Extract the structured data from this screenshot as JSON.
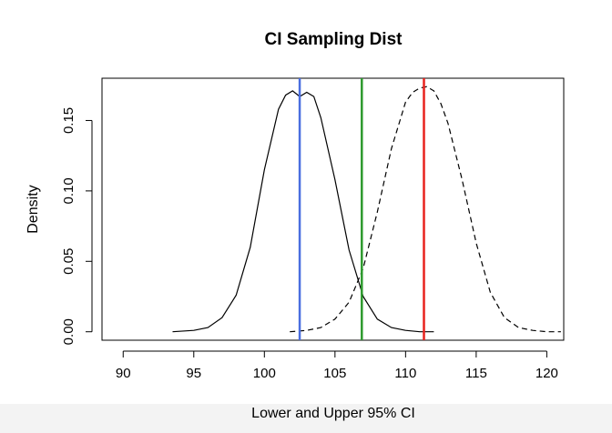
{
  "chart_data": {
    "type": "line",
    "title": "CI Sampling Dist",
    "xlabel": "Lower and Upper 95% CI",
    "ylabel": "Density",
    "xlim": [
      88.5,
      121.2
    ],
    "ylim": [
      -0.006,
      0.18
    ],
    "x_ticks": [
      90,
      95,
      100,
      105,
      110,
      115,
      120
    ],
    "x_tick_labels": [
      "90",
      "95",
      "100",
      "105",
      "110",
      "115",
      "120"
    ],
    "y_ticks": [
      0.0,
      0.05,
      0.1,
      0.15
    ],
    "y_tick_labels": [
      "0.00",
      "0.05",
      "0.10",
      "0.15"
    ],
    "grid": false,
    "series": [
      {
        "style": "solid",
        "color": "#000000",
        "x": [
          93.5,
          95.0,
          96.0,
          97.0,
          98.0,
          99.0,
          100.0,
          101.0,
          101.5,
          102.0,
          102.5,
          103.0,
          103.5,
          104.0,
          105.0,
          106.0,
          107.0,
          108.0,
          109.0,
          110.0,
          111.0,
          112.0
        ],
        "y": [
          0.0,
          0.001,
          0.003,
          0.01,
          0.026,
          0.06,
          0.115,
          0.158,
          0.168,
          0.171,
          0.167,
          0.17,
          0.167,
          0.152,
          0.108,
          0.058,
          0.025,
          0.009,
          0.003,
          0.001,
          0.0,
          0.0
        ]
      },
      {
        "style": "dashed",
        "color": "#000000",
        "x": [
          101.8,
          103.0,
          104.0,
          105.0,
          106.0,
          107.0,
          108.0,
          109.0,
          110.0,
          110.5,
          111.0,
          111.5,
          112.0,
          112.5,
          113.0,
          114.0,
          115.0,
          116.0,
          117.0,
          118.0,
          119.0,
          120.0,
          121.0
        ],
        "y": [
          0.0,
          0.001,
          0.003,
          0.009,
          0.021,
          0.045,
          0.085,
          0.13,
          0.163,
          0.17,
          0.173,
          0.174,
          0.171,
          0.162,
          0.148,
          0.108,
          0.063,
          0.028,
          0.01,
          0.003,
          0.001,
          0.0,
          0.0
        ]
      }
    ],
    "vlines": [
      {
        "x": 102.5,
        "color": "#4a6ee0"
      },
      {
        "x": 106.9,
        "color": "#2e9a2e"
      },
      {
        "x": 111.3,
        "color": "#e8231e"
      }
    ]
  }
}
